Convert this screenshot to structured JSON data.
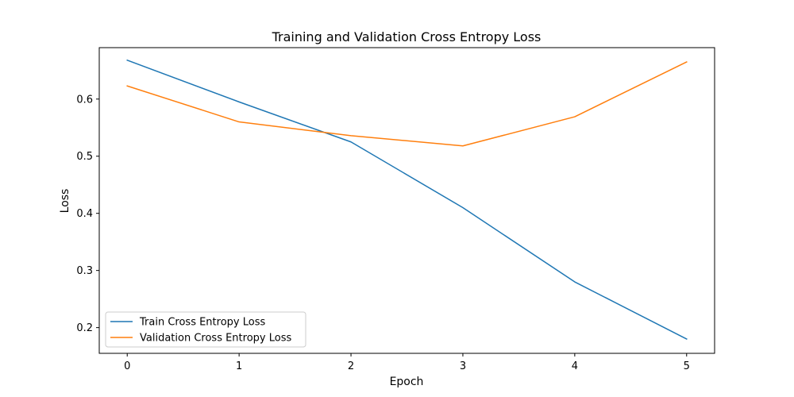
{
  "chart_data": {
    "type": "line",
    "title": "Training and Validation Cross Entropy Loss",
    "xlabel": "Epoch",
    "ylabel": "Loss",
    "x": [
      0,
      1,
      2,
      3,
      4,
      5
    ],
    "x_ticks": [
      0,
      1,
      2,
      3,
      4,
      5
    ],
    "y_ticks": [
      0.2,
      0.3,
      0.4,
      0.5,
      0.6
    ],
    "xlim": [
      -0.25,
      5.25
    ],
    "ylim": [
      0.155,
      0.69
    ],
    "grid": false,
    "legend_position": "lower-left",
    "series": [
      {
        "name": "Train Cross Entropy Loss",
        "color": "#1f77b4",
        "values": [
          0.668,
          0.595,
          0.525,
          0.41,
          0.28,
          0.18
        ]
      },
      {
        "name": "Validation Cross Entropy Loss",
        "color": "#ff7f0e",
        "values": [
          0.623,
          0.56,
          0.536,
          0.518,
          0.569,
          0.665
        ]
      }
    ]
  }
}
